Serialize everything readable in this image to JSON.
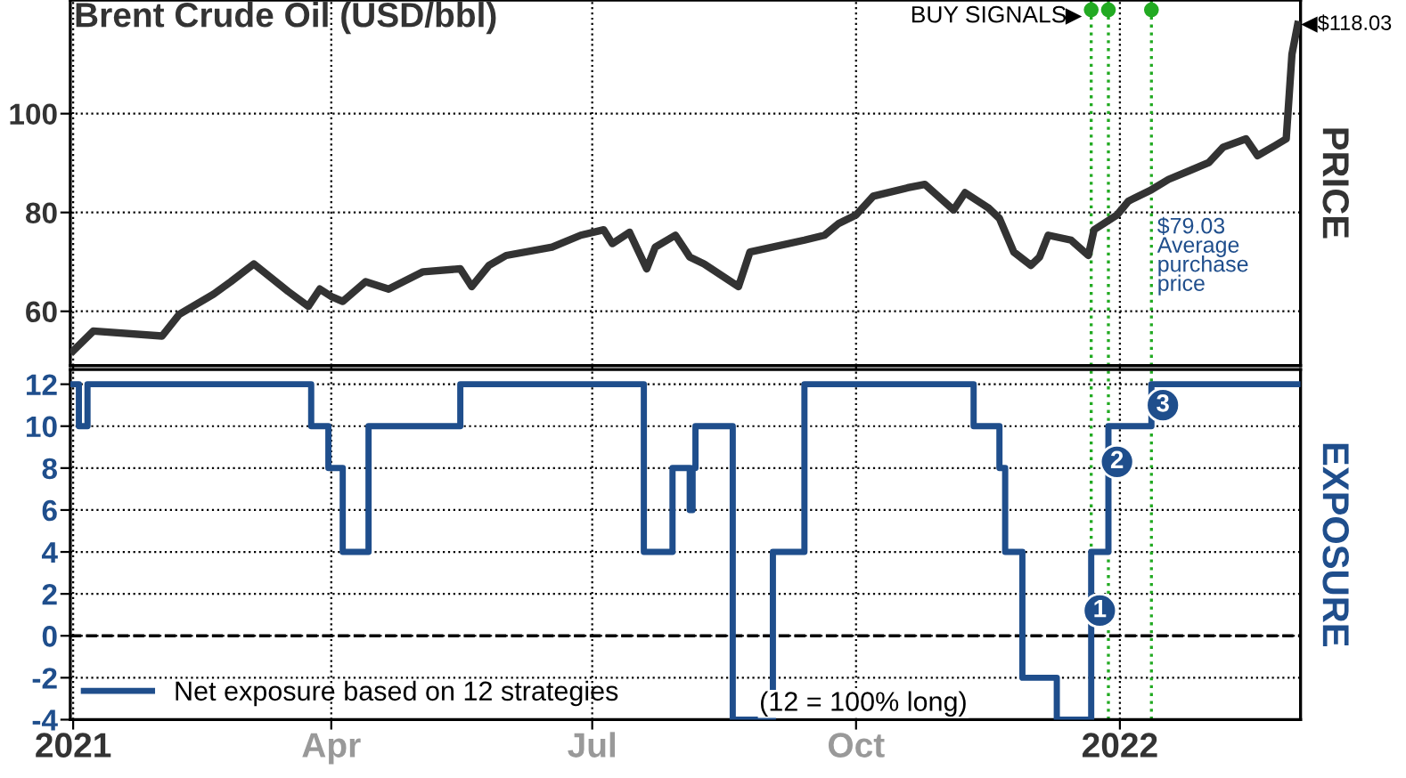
{
  "chart_data": [
    {
      "type": "line",
      "title": "Brent Crude Oil (USD/bbl)",
      "ylabel": "PRICE",
      "x": [
        "2021-01-01",
        "2021-01-08",
        "2021-02-01",
        "2021-02-07",
        "2021-02-19",
        "2021-02-25",
        "2021-03-05",
        "2021-03-17",
        "2021-03-24",
        "2021-03-28",
        "2021-04-01",
        "2021-04-05",
        "2021-04-13",
        "2021-04-21",
        "2021-05-03",
        "2021-05-16",
        "2021-05-20",
        "2021-05-26",
        "2021-06-01",
        "2021-06-17",
        "2021-06-27",
        "2021-07-05",
        "2021-07-08",
        "2021-07-14",
        "2021-07-20",
        "2021-07-23",
        "2021-07-30",
        "2021-08-04",
        "2021-08-09",
        "2021-08-21",
        "2021-08-25",
        "2021-09-13",
        "2021-09-20",
        "2021-09-25",
        "2021-10-01",
        "2021-10-07",
        "2021-10-19",
        "2021-10-25",
        "2021-11-04",
        "2021-11-08",
        "2021-11-16",
        "2021-11-20",
        "2021-11-25",
        "2021-12-01",
        "2021-12-04",
        "2021-12-07",
        "2021-12-15",
        "2021-12-21",
        "2021-12-23",
        "2021-12-31",
        "2022-01-04",
        "2022-01-12",
        "2022-01-18",
        "2022-01-25",
        "2022-02-01",
        "2022-02-06",
        "2022-02-14",
        "2022-02-18",
        "2022-02-24",
        "2022-02-28",
        "2022-03-02",
        "2022-03-04"
      ],
      "series": [
        {
          "color": "#333333",
          "values": [
            52,
            56,
            55,
            59.4,
            63.5,
            66,
            69.6,
            64,
            61,
            64.5,
            63,
            62,
            66,
            64.5,
            68,
            68.6,
            65,
            69.3,
            71.3,
            73,
            75.4,
            76.5,
            73.7,
            76,
            68.6,
            73,
            75.4,
            71,
            69.6,
            65,
            72,
            74.4,
            75.4,
            77.8,
            79.5,
            83.3,
            85,
            85.7,
            80.5,
            84,
            81,
            78.8,
            72,
            69.3,
            71,
            75.4,
            74.4,
            71.3,
            76.5,
            79.5,
            82.3,
            84.6,
            86.7,
            88.4,
            90.1,
            93.2,
            94.9,
            91.5,
            93.5,
            94.9,
            112,
            118.03
          ]
        }
      ],
      "xlim": [
        "2020-12-31",
        "2022-03-05"
      ],
      "xticks": [
        {
          "value": "2021-01-01",
          "label": null
        },
        {
          "value": "2021-04-01",
          "label": null
        },
        {
          "value": "2021-07-01",
          "label": null
        },
        {
          "value": "2021-10-01",
          "label": null
        },
        {
          "value": "2022-01-01",
          "label": null
        }
      ],
      "ylim": [
        49,
        123
      ],
      "yticks": [
        60,
        80,
        100
      ],
      "tick_labels": "y",
      "grid": true,
      "ref_lines": [
        {
          "axis": "x",
          "value": "2021-12-22",
          "color": "#22aa22",
          "line_style": "dotted"
        },
        {
          "axis": "x",
          "value": "2021-12-28",
          "color": "#22aa22",
          "line_style": "dotted"
        },
        {
          "axis": "x",
          "value": "2022-01-12",
          "color": "#22aa22",
          "line_style": "dotted"
        }
      ],
      "annotations": [
        "BUY SIGNALS",
        {
          "text": "$118.03",
          "x": "2022-03-04",
          "y": 118.03
        },
        {
          "text": "$79.03\nAverage\npurchase\nprice",
          "x": "2022-01-14",
          "y": 79.03
        }
      ]
    },
    {
      "type": "step",
      "ylabel": "EXPOSURE",
      "x": [
        "2021-01-01",
        "2021-01-03",
        "2021-01-06",
        "2021-03-25",
        "2021-03-31",
        "2021-04-05",
        "2021-04-14",
        "2021-05-16",
        "2021-07-19",
        "2021-07-29",
        "2021-08-04",
        "2021-08-05",
        "2021-08-06",
        "2021-08-19",
        "2021-09-02",
        "2021-09-13",
        "2021-11-11",
        "2021-11-20",
        "2021-11-22",
        "2021-11-28",
        "2021-12-10",
        "2021-12-22",
        "2021-12-28",
        "2022-01-12",
        "2022-03-04"
      ],
      "series": [
        {
          "name": "Net exposure based on 12 strategies",
          "color": "#1f4e8c",
          "values": [
            12,
            10,
            12,
            10,
            8,
            4,
            10,
            12,
            4,
            8,
            6,
            8,
            10,
            -4,
            4,
            12,
            10,
            8,
            4,
            -2,
            -4,
            4,
            10,
            12,
            12
          ]
        }
      ],
      "xlim": [
        "2020-12-31",
        "2022-03-05"
      ],
      "xticks": [
        {
          "value": "2021-01-01",
          "label": "2021"
        },
        {
          "value": "2021-04-01",
          "label": "Apr"
        },
        {
          "value": "2021-07-01",
          "label": "Jul"
        },
        {
          "value": "2021-10-01",
          "label": "Oct"
        },
        {
          "value": "2022-01-01",
          "label": "2022"
        }
      ],
      "ylim": [
        -4,
        12.7
      ],
      "yticks": [
        -4,
        -2,
        0,
        2,
        4,
        6,
        8,
        10,
        12
      ],
      "grid": true,
      "legend": "bottom left",
      "ref_lines": [
        {
          "axis": "y",
          "value": 0,
          "color": "#000000",
          "line_style": "dashed"
        },
        {
          "axis": "x",
          "value": "2021-12-22",
          "color": "#22aa22",
          "line_style": "dotted"
        },
        {
          "axis": "x",
          "value": "2021-12-28",
          "color": "#22aa22",
          "line_style": "dotted"
        },
        {
          "axis": "x",
          "value": "2022-01-12",
          "color": "#22aa22",
          "line_style": "dotted"
        }
      ],
      "annotations": [
        "(12 = 100% long)",
        {
          "text": "1",
          "x": "2021-12-25",
          "y": 1.2
        },
        {
          "text": "2",
          "x": "2021-12-31",
          "y": 8.3
        },
        {
          "text": "3",
          "x": "2022-01-16",
          "y": 11
        }
      ]
    }
  ]
}
